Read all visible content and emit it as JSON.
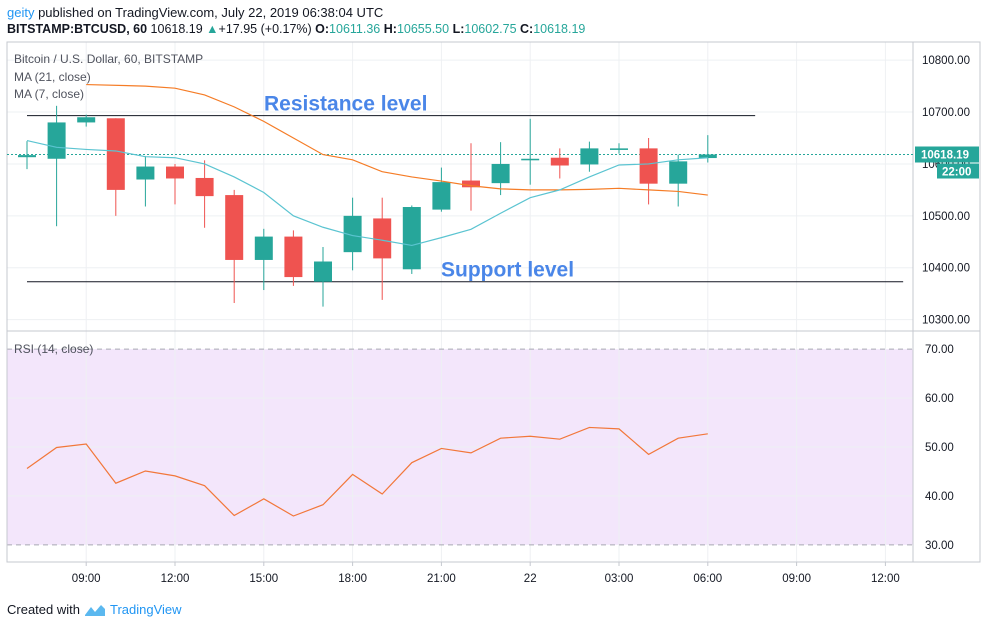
{
  "header": {
    "user": "geity",
    "published": " published on TradingView.com, July 22, 2019 06:38:04 UTC",
    "symbol": "BITSTAMP:BTCUSD, 60",
    "last": "10618.19",
    "change": "+17.95 (+0.17%)",
    "o_label": "O:",
    "o": "10611.36",
    "h_label": "H:",
    "h": "10655.50",
    "l_label": "L:",
    "l": "10602.75",
    "c_label": "C:",
    "c": "10618.19"
  },
  "colors": {
    "up": "#26a69a",
    "down": "#ef5350",
    "ma21": "#f57c26",
    "ma7": "#5bc4d1",
    "rsi": "#f2773a",
    "rsi_band": "#f3e6fb",
    "annotation": "#4a86e8"
  },
  "chart_data": [
    {
      "type": "candlestick",
      "title": "Bitcoin / U.S. Dollar, 60, BITSTAMP",
      "legend": [
        "MA (21, close)",
        "MA (7, close)"
      ],
      "ylim": [
        10280,
        10835
      ],
      "y_ticks": [
        "10800.00",
        "10700.00",
        "10600.00",
        "10500.00",
        "10400.00",
        "10300.00"
      ],
      "price_label": "10618.19",
      "countdown_label": "22:00",
      "x_ticks": [
        {
          "label": "09:00",
          "at": 9
        },
        {
          "label": "12:00",
          "at": 12
        },
        {
          "label": "15:00",
          "at": 15
        },
        {
          "label": "18:00",
          "at": 18
        },
        {
          "label": "21:00",
          "at": 21
        },
        {
          "label": "22",
          "at": 24
        },
        {
          "label": "03:00",
          "at": 27
        },
        {
          "label": "06:00",
          "at": 30
        },
        {
          "label": "09:00",
          "at": 33
        },
        {
          "label": "12:00",
          "at": 36
        }
      ],
      "candles": [
        {
          "t": 7,
          "o": 10613,
          "h": 10644,
          "l": 10590,
          "c": 10617
        },
        {
          "t": 8,
          "o": 10610,
          "h": 10712,
          "l": 10480,
          "c": 10680
        },
        {
          "t": 9,
          "o": 10680,
          "h": 10695,
          "l": 10672,
          "c": 10690
        },
        {
          "t": 10,
          "o": 10688,
          "h": 10688,
          "l": 10500,
          "c": 10550
        },
        {
          "t": 11,
          "o": 10570,
          "h": 10615,
          "l": 10518,
          "c": 10595
        },
        {
          "t": 12,
          "o": 10595,
          "h": 10600,
          "l": 10522,
          "c": 10572
        },
        {
          "t": 13,
          "o": 10573,
          "h": 10607,
          "l": 10477,
          "c": 10538
        },
        {
          "t": 14,
          "o": 10540,
          "h": 10550,
          "l": 10332,
          "c": 10415
        },
        {
          "t": 15,
          "o": 10415,
          "h": 10475,
          "l": 10357,
          "c": 10460
        },
        {
          "t": 16,
          "o": 10460,
          "h": 10472,
          "l": 10365,
          "c": 10382
        },
        {
          "t": 17,
          "o": 10373,
          "h": 10440,
          "l": 10325,
          "c": 10412
        },
        {
          "t": 18,
          "o": 10430,
          "h": 10535,
          "l": 10395,
          "c": 10500
        },
        {
          "t": 19,
          "o": 10495,
          "h": 10535,
          "l": 10338,
          "c": 10418
        },
        {
          "t": 20,
          "o": 10397,
          "h": 10520,
          "l": 10388,
          "c": 10517
        },
        {
          "t": 21,
          "o": 10512,
          "h": 10593,
          "l": 10508,
          "c": 10565
        },
        {
          "t": 22,
          "o": 10568,
          "h": 10640,
          "l": 10510,
          "c": 10555
        },
        {
          "t": 23,
          "o": 10563,
          "h": 10642,
          "l": 10540,
          "c": 10600
        },
        {
          "t": 24,
          "o": 10607,
          "h": 10687,
          "l": 10560,
          "c": 10610
        },
        {
          "t": 25,
          "o": 10612,
          "h": 10630,
          "l": 10572,
          "c": 10597
        },
        {
          "t": 26,
          "o": 10599,
          "h": 10643,
          "l": 10585,
          "c": 10630
        },
        {
          "t": 27,
          "o": 10627,
          "h": 10640,
          "l": 10620,
          "c": 10630
        },
        {
          "t": 28,
          "o": 10630,
          "h": 10650,
          "l": 10522,
          "c": 10562
        },
        {
          "t": 29,
          "o": 10562,
          "h": 10618,
          "l": 10518,
          "c": 10605
        },
        {
          "t": 30,
          "o": 10611.36,
          "h": 10655.5,
          "l": 10602.75,
          "c": 10618.19
        }
      ],
      "ma21": [
        [
          9,
          10753
        ],
        [
          11,
          10750
        ],
        [
          12,
          10746
        ],
        [
          13,
          10733
        ],
        [
          14,
          10710
        ],
        [
          15,
          10682
        ],
        [
          16,
          10650
        ],
        [
          17,
          10618
        ],
        [
          18,
          10608
        ],
        [
          19,
          10585
        ],
        [
          20,
          10575
        ],
        [
          21,
          10567
        ],
        [
          22,
          10558
        ],
        [
          23,
          10552
        ],
        [
          24,
          10550
        ],
        [
          25,
          10550
        ],
        [
          26,
          10551
        ],
        [
          27,
          10553
        ],
        [
          28,
          10550
        ],
        [
          29,
          10547
        ],
        [
          30,
          10540
        ]
      ],
      "ma7": [
        [
          7,
          10645
        ],
        [
          8,
          10632
        ],
        [
          9,
          10628
        ],
        [
          10,
          10625
        ],
        [
          11,
          10614
        ],
        [
          12,
          10612
        ],
        [
          13,
          10600
        ],
        [
          14,
          10575
        ],
        [
          15,
          10545
        ],
        [
          16,
          10500
        ],
        [
          17,
          10478
        ],
        [
          18,
          10462
        ],
        [
          19,
          10453
        ],
        [
          20,
          10443
        ],
        [
          21,
          10458
        ],
        [
          22,
          10474
        ],
        [
          23,
          10505
        ],
        [
          24,
          10535
        ],
        [
          25,
          10550
        ],
        [
          26,
          10575
        ],
        [
          27,
          10598
        ],
        [
          28,
          10600
        ],
        [
          29,
          10608
        ],
        [
          30,
          10612
        ]
      ],
      "annotations": [
        {
          "label": "Resistance level",
          "price": 10693,
          "from": 7,
          "to": 31.6
        },
        {
          "label": "Support level",
          "price": 10373,
          "from": 7,
          "to": 36.6
        }
      ]
    },
    {
      "type": "line",
      "title": "RSI (14, close)",
      "ylim": [
        26.5,
        73.5
      ],
      "band": [
        30,
        70
      ],
      "y_ticks": [
        "70.00",
        "60.00",
        "50.00",
        "40.00",
        "30.00"
      ],
      "x": [
        7,
        8,
        9,
        10,
        11,
        12,
        13,
        14,
        15,
        16,
        17,
        18,
        19,
        20,
        21,
        22,
        23,
        24,
        25,
        26,
        27,
        28,
        29,
        30
      ],
      "values": [
        45.6,
        49.9,
        50.6,
        42.6,
        45.1,
        44.1,
        42.1,
        36.0,
        39.4,
        35.9,
        38.2,
        44.4,
        40.4,
        46.8,
        49.7,
        48.8,
        51.8,
        52.2,
        51.6,
        54.0,
        53.7,
        48.5,
        51.8,
        52.7
      ]
    }
  ],
  "footer": {
    "created": "Created with",
    "brand": "TradingView"
  }
}
